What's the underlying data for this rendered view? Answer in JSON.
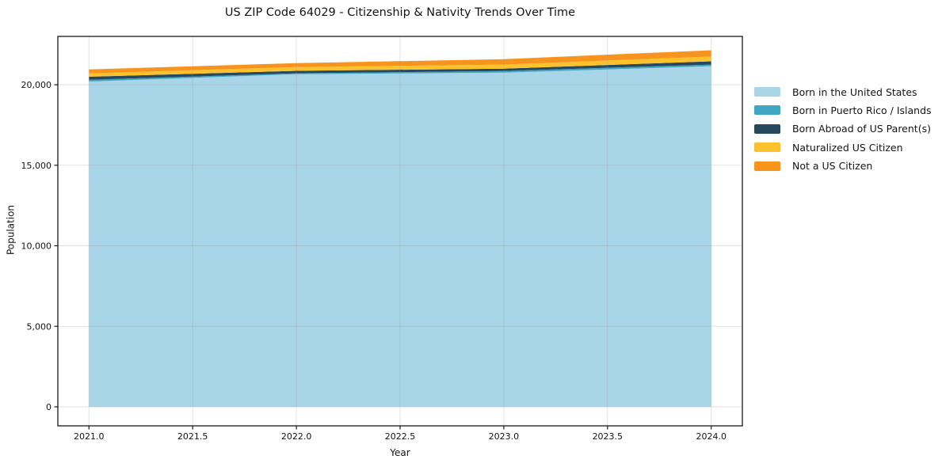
{
  "chart_data": {
    "type": "area",
    "stacked": true,
    "title": "US ZIP Code 64029 - Citizenship & Nativity Trends Over Time",
    "xlabel": "Year",
    "ylabel": "Population",
    "x": [
      2021,
      2022,
      2023,
      2024
    ],
    "series": [
      {
        "name": "Born in the United States",
        "color": "#a9d5e8",
        "values": [
          20200,
          20650,
          20750,
          21150
        ]
      },
      {
        "name": "Born in Puerto Rico / Islands",
        "color": "#41a6c4",
        "values": [
          100,
          60,
          100,
          100
        ]
      },
      {
        "name": "Born Abroad of US Parent(s)",
        "color": "#26495e",
        "values": [
          200,
          150,
          150,
          200
        ]
      },
      {
        "name": "Naturalized US Citizen",
        "color": "#fcc22e",
        "values": [
          200,
          240,
          250,
          300
        ]
      },
      {
        "name": "Not a US Citizen",
        "color": "#f7941e",
        "values": [
          250,
          240,
          340,
          390
        ]
      }
    ],
    "x_tick_values": [
      2021.0,
      2021.5,
      2022.0,
      2022.5,
      2023.0,
      2023.5,
      2024.0
    ],
    "x_tick_labels": [
      "2021.0",
      "2021.5",
      "2022.0",
      "2022.5",
      "2023.0",
      "2023.5",
      "2024.0"
    ],
    "y_tick_values": [
      0,
      5000,
      10000,
      15000,
      20000
    ],
    "y_tick_labels": [
      "0",
      "5,000",
      "10,000",
      "15,000",
      "20,000"
    ],
    "xlim": [
      2020.85,
      2024.15
    ],
    "ylim": [
      -1180,
      23000
    ],
    "grid": true,
    "legend_position": "right",
    "spine_color": "#1a1a1a",
    "grid_color": "rgba(150,150,150,0.28)",
    "tick_text_color": "#141414"
  }
}
